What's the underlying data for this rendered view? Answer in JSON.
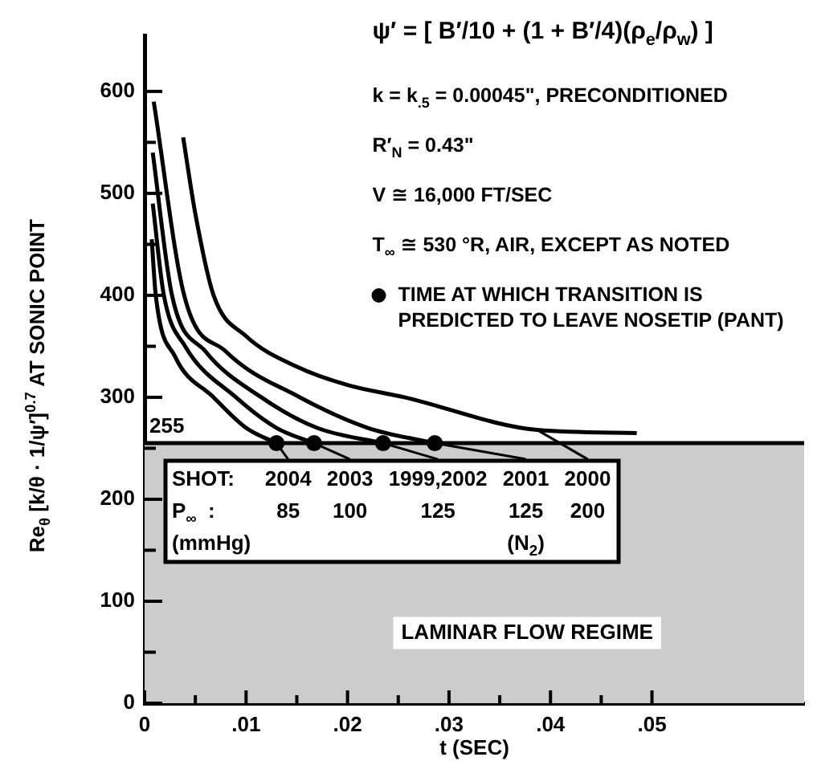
{
  "chart_data": {
    "type": "line",
    "xlabel": "t (SEC)",
    "ylabel": "Re$_{θ}$ [k/θ · 1/ψ′]$^{0.7}$ AT SONIC POINT",
    "xlim": [
      0,
      0.065
    ],
    "ylim": [
      0,
      655
    ],
    "xticks": [
      0,
      {
        "value": 0.005,
        "label": null
      },
      {
        "value": 0.01,
        "label": ".01"
      },
      {
        "value": 0.015,
        "label": null
      },
      {
        "value": 0.02,
        "label": ".02"
      },
      {
        "value": 0.025,
        "label": null
      },
      {
        "value": 0.03,
        "label": ".03"
      },
      {
        "value": 0.035,
        "label": null
      },
      {
        "value": 0.04,
        "label": ".04"
      },
      {
        "value": 0.045,
        "label": null
      },
      {
        "value": 0.05,
        "label": ".05"
      }
    ],
    "yticks": [
      0,
      {
        "value": 50,
        "label": null
      },
      100,
      {
        "value": 150,
        "label": null
      },
      200,
      {
        "value": 250,
        "label": null
      },
      300,
      {
        "value": 350,
        "label": null
      },
      400,
      {
        "value": 450,
        "label": null
      },
      500,
      {
        "value": 550,
        "label": null
      },
      600
    ],
    "grid": false,
    "legend": "top right",
    "series": [
      {
        "color": "#000000",
        "marker": "none",
        "x": [
          0.0007,
          0.0011,
          0.003,
          0.0068,
          0.01,
          0.013
        ],
        "values": [
          455,
          400,
          340,
          300,
          270,
          255
        ]
      },
      {
        "color": "#000000",
        "marker": "none",
        "x": [
          0.0008,
          0.0019,
          0.004,
          0.009,
          0.013,
          0.0167
        ],
        "values": [
          490,
          400,
          350,
          300,
          270,
          255
        ]
      },
      {
        "color": "#000000",
        "marker": "none",
        "x": [
          0.0008,
          0.0027,
          0.006,
          0.0115,
          0.017,
          0.0235
        ],
        "values": [
          540,
          400,
          345,
          300,
          270,
          255
        ]
      },
      {
        "color": "#000000",
        "marker": "none",
        "x": [
          0.0009,
          0.0039,
          0.008,
          0.0153,
          0.022,
          0.0286
        ],
        "values": [
          590,
          400,
          345,
          300,
          270,
          255
        ]
      },
      {
        "color": "#000000",
        "marker": "none",
        "x": [
          0.0038,
          0.005,
          0.0068,
          0.01,
          0.015,
          0.02,
          0.0256,
          0.0387,
          0.0485
        ],
        "values": [
          555,
          480,
          400,
          360,
          330,
          312,
          300,
          268,
          265
        ]
      },
      {
        "type": "scatter",
        "name": "TIME AT WHICH TRANSITION IS PREDICTED TO LEAVE NOSETIP (PANT)",
        "color": "#000000",
        "marker": "circle",
        "x": [
          0.013,
          0.0167,
          0.0235,
          0.0286
        ],
        "values": [
          255,
          255,
          255,
          255
        ]
      }
    ],
    "ref_lines": [
      {
        "axis": "y",
        "value": 255,
        "label": "255",
        "color": "#000000"
      }
    ],
    "bands": [
      {
        "axis": "y",
        "from": 0,
        "to": 255,
        "label": "LAMINAR FLOW REGIME",
        "color": "#cccccc"
      }
    ],
    "annotations": [
      "ψ′ = [ B′/10 + (1 + B′/4)(ρ$_{e}$/ρ$_{w}$) ]",
      "k = k$_{.5}$ = 0.00045\", PRECONDITIONED",
      "R′$_{N}$ = 0.43\"",
      "V ≅ 16,000 FT/SEC",
      "T$_{∞}$ ≅ 530 °R, AIR, EXCEPT AS NOTED",
      "SHOT:\nP$_{∞}$  :\n(mmHg)",
      {
        "text": "2004\n85",
        "x": 0.013,
        "y": 255
      },
      {
        "text": "2003\n100",
        "x": 0.0167,
        "y": 255
      },
      {
        "text": "1999,2002\n125",
        "x": 0.0235,
        "y": 255
      },
      {
        "text": "2001\n125\n(N$_{2}$)",
        "x": 0.0286,
        "y": 255
      },
      {
        "text": "2000\n200",
        "x": 0.0387,
        "y": 268
      }
    ]
  }
}
